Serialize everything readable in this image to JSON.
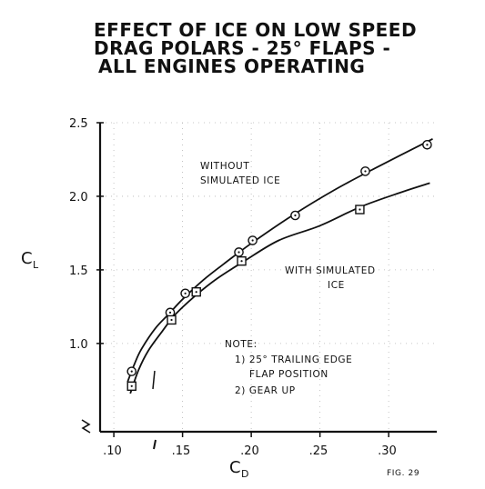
{
  "chart_data": {
    "type": "line",
    "title_lines": [
      "EFFECT OF ICE ON LOW SPEED",
      "DRAG POLARS - 25° FLAPS -",
      "ALL ENGINES OPERATING"
    ],
    "ylabel": "C",
    "ylabel_sub": "L",
    "xlabel": "C",
    "xlabel_sub": "D",
    "xlim": [
      0.09,
      0.335
    ],
    "ylim": [
      0.4,
      2.5
    ],
    "x_ticks": [
      ".10",
      ".15",
      ".20",
      ".25",
      ".30"
    ],
    "x_tick_values": [
      0.1,
      0.15,
      0.2,
      0.25,
      0.3
    ],
    "y_ticks": [
      "1.0",
      "1.5",
      "2.0",
      "2.5"
    ],
    "y_tick_values": [
      1.0,
      1.5,
      2.0,
      2.5
    ],
    "grid": true,
    "series": [
      {
        "name": "WITHOUT SIMULATED ICE",
        "marker": "circle",
        "points": [
          {
            "x": 0.113,
            "y": 0.81
          },
          {
            "x": 0.141,
            "y": 1.21
          },
          {
            "x": 0.152,
            "y": 1.34
          },
          {
            "x": 0.191,
            "y": 1.62
          },
          {
            "x": 0.201,
            "y": 1.7
          },
          {
            "x": 0.232,
            "y": 1.87
          },
          {
            "x": 0.283,
            "y": 2.17
          },
          {
            "x": 0.328,
            "y": 2.35
          }
        ],
        "curve": [
          {
            "x": 0.11,
            "y": 0.74
          },
          {
            "x": 0.115,
            "y": 0.86
          },
          {
            "x": 0.12,
            "y": 0.96
          },
          {
            "x": 0.13,
            "y": 1.1
          },
          {
            "x": 0.14,
            "y": 1.2
          },
          {
            "x": 0.15,
            "y": 1.3
          },
          {
            "x": 0.165,
            "y": 1.43
          },
          {
            "x": 0.18,
            "y": 1.54
          },
          {
            "x": 0.2,
            "y": 1.68
          },
          {
            "x": 0.23,
            "y": 1.87
          },
          {
            "x": 0.26,
            "y": 2.04
          },
          {
            "x": 0.29,
            "y": 2.19
          },
          {
            "x": 0.332,
            "y": 2.39
          }
        ]
      },
      {
        "name": "WITH SIMULATED ICE",
        "marker": "square",
        "points": [
          {
            "x": 0.113,
            "y": 0.71
          },
          {
            "x": 0.142,
            "y": 1.16
          },
          {
            "x": 0.16,
            "y": 1.35
          },
          {
            "x": 0.193,
            "y": 1.56
          },
          {
            "x": 0.279,
            "y": 1.91
          }
        ],
        "curve": [
          {
            "x": 0.112,
            "y": 0.66
          },
          {
            "x": 0.118,
            "y": 0.82
          },
          {
            "x": 0.125,
            "y": 0.95
          },
          {
            "x": 0.135,
            "y": 1.08
          },
          {
            "x": 0.145,
            "y": 1.2
          },
          {
            "x": 0.16,
            "y": 1.33
          },
          {
            "x": 0.175,
            "y": 1.44
          },
          {
            "x": 0.195,
            "y": 1.56
          },
          {
            "x": 0.22,
            "y": 1.7
          },
          {
            "x": 0.25,
            "y": 1.8
          },
          {
            "x": 0.28,
            "y": 1.93
          },
          {
            "x": 0.31,
            "y": 2.03
          },
          {
            "x": 0.33,
            "y": 2.09
          }
        ]
      }
    ],
    "annotations": {
      "without_ice": [
        "WITHOUT",
        "SIMULATED ICE"
      ],
      "with_ice": [
        "WITH SIMULATED",
        "ICE"
      ],
      "note": [
        "NOTE:",
        "1) 25° TRAILING EDGE",
        "FLAP POSITION",
        "2) GEAR UP"
      ],
      "figure": "FIG. 29"
    }
  }
}
